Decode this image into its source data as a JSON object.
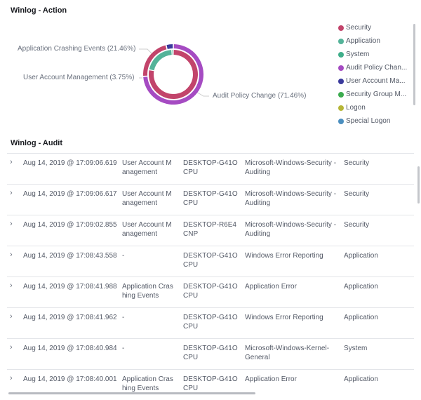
{
  "action_panel": {
    "title": "Winlog - Action"
  },
  "chart_data": {
    "type": "pie",
    "variant": "nested-donut",
    "inner_ring": {
      "categories": [
        "Security",
        "Application",
        "System"
      ],
      "values": [
        78,
        21,
        1
      ]
    },
    "outer_ring": {
      "categories": [
        "Audit Policy Change",
        "Application Crashing Events",
        "User Account Management"
      ],
      "values": [
        71.46,
        21.46,
        3.75
      ]
    },
    "labels": [
      "Application Crashing Events (21.46%)",
      "User Account Management (3.75%)",
      "Audit Policy Change (71.46%)"
    ],
    "legend_position": "right",
    "legend": [
      {
        "label": "Security",
        "color": "#c2446b"
      },
      {
        "label": "Application",
        "color": "#54b399"
      },
      {
        "label": "System",
        "color": "#3fae8a"
      },
      {
        "label": "Audit Policy Chan...",
        "color": "#a54bc2"
      },
      {
        "label": "User Account Ma...",
        "color": "#3a3a9c"
      },
      {
        "label": "Security Group M...",
        "color": "#3cab4f"
      },
      {
        "label": "Logon",
        "color": "#b6b638"
      },
      {
        "label": "Special Logon",
        "color": "#4b8fbf"
      }
    ],
    "colors": {
      "Security": "#c2446b",
      "Application": "#54b399",
      "System": "#3fae8a",
      "Audit Policy Change": "#a54bc2",
      "Application Crashing Events": "#c2446b",
      "User Account Management": "#3a3a9c"
    }
  },
  "audit_panel": {
    "title": "Winlog - Audit",
    "rows": [
      {
        "time": "Aug 14, 2019 @ 17:09:06.619",
        "action": "User Account M anagement",
        "host": "DESKTOP-G41O CPU",
        "provider": "Microsoft-Windows-Security -Auditing",
        "channel": "Security"
      },
      {
        "time": "Aug 14, 2019 @ 17:09:06.617",
        "action": "User Account M anagement",
        "host": "DESKTOP-G41O CPU",
        "provider": "Microsoft-Windows-Security -Auditing",
        "channel": "Security"
      },
      {
        "time": "Aug 14, 2019 @ 17:09:02.855",
        "action": "User Account M anagement",
        "host": "DESKTOP-R6E4 CNP",
        "provider": "Microsoft-Windows-Security -Auditing",
        "channel": "Security"
      },
      {
        "time": "Aug 14, 2019 @ 17:08:43.558",
        "action": "-",
        "host": "DESKTOP-G41O CPU",
        "provider": "Windows Error Reporting",
        "channel": "Application"
      },
      {
        "time": "Aug 14, 2019 @ 17:08:41.988",
        "action": "Application Cras hing Events",
        "host": "DESKTOP-G41O CPU",
        "provider": "Application Error",
        "channel": "Application"
      },
      {
        "time": "Aug 14, 2019 @ 17:08:41.962",
        "action": "-",
        "host": "DESKTOP-G41O CPU",
        "provider": "Windows Error Reporting",
        "channel": "Application"
      },
      {
        "time": "Aug 14, 2019 @ 17:08:40.984",
        "action": "-",
        "host": "DESKTOP-G41O CPU",
        "provider": "Microsoft-Windows-Kernel- General",
        "channel": "System"
      },
      {
        "time": "Aug 14, 2019 @ 17:08:40.001",
        "action": "Application Cras hing Events",
        "host": "DESKTOP-G41O CPU",
        "provider": "Application Error",
        "channel": "Application"
      }
    ],
    "expand_icon": "chevron-right-icon"
  }
}
